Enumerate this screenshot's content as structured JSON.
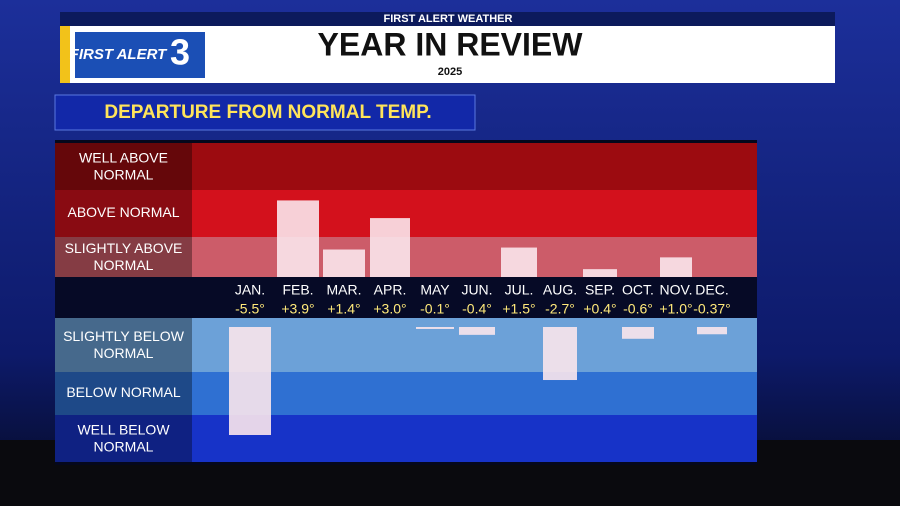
{
  "header": {
    "network": "FIRST ALERT WEATHER",
    "logo_text": "FIRST ALERT",
    "logo_number": "3",
    "title": "YEAR IN REVIEW",
    "year": "2025"
  },
  "chart_data": {
    "type": "bar",
    "title": "DEPARTURE FROM NORMAL TEMP.",
    "categories": [
      "JAN.",
      "FEB.",
      "MAR.",
      "APR.",
      "MAY",
      "JUN.",
      "JUL.",
      "AUG.",
      "SEP.",
      "OCT.",
      "NOV.",
      "DEC."
    ],
    "values": [
      -5.5,
      3.9,
      1.4,
      3.0,
      -0.1,
      -0.4,
      1.5,
      -2.7,
      0.4,
      -0.6,
      1.0,
      -0.37
    ],
    "value_labels": [
      "-5.5°",
      "+3.9°",
      "+1.4°",
      "+3.0°",
      "-0.1°",
      "-0.4°",
      "+1.5°",
      "-2.7°",
      "+0.4°",
      "-0.6°",
      "+1.0°",
      "-0.37°"
    ],
    "color": "#fbe6ec",
    "bands": [
      {
        "label": "WELL ABOVE NORMAL",
        "color": "#9c0b10"
      },
      {
        "label": "ABOVE NORMAL",
        "color": "#d3111c"
      },
      {
        "label": "SLIGHTLY ABOVE NORMAL",
        "color": "#cc5c69"
      },
      {
        "label": "SLIGHTLY BELOW NORMAL",
        "color": "#6ca1d8"
      },
      {
        "label": "BELOW NORMAL",
        "color": "#2f70d2"
      },
      {
        "label": "WELL BELOW NORMAL",
        "color": "#1733c8"
      }
    ]
  }
}
